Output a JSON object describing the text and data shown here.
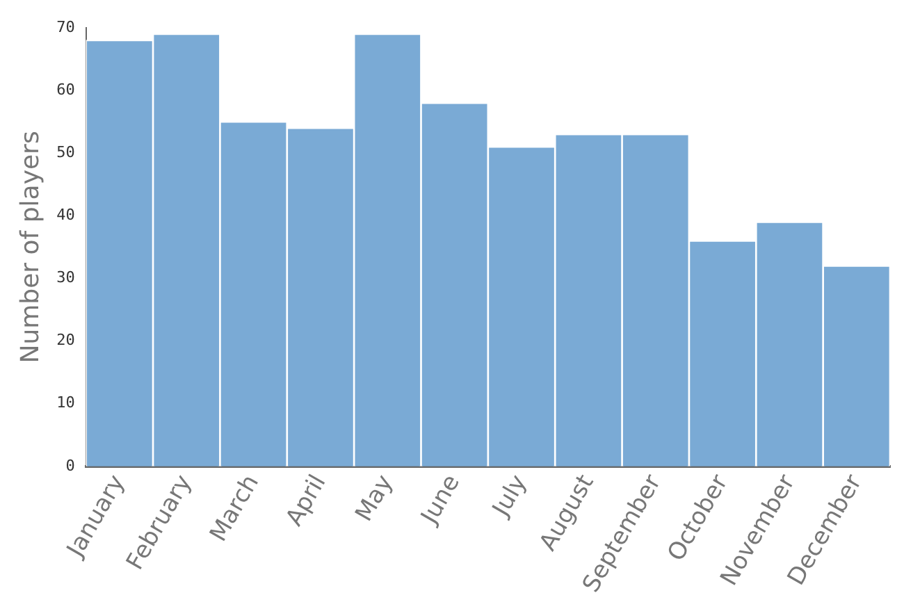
{
  "chart_data": {
    "type": "bar",
    "ylabel": "Number of players",
    "categories": [
      "January",
      "February",
      "March",
      "April",
      "May",
      "June",
      "July",
      "August",
      "September",
      "October",
      "November",
      "December"
    ],
    "values": [
      68,
      69,
      55,
      54,
      69,
      58,
      51,
      53,
      53,
      36,
      39,
      32
    ],
    "color": "#7aaad5",
    "ylim": [
      0,
      70
    ],
    "yticks": [
      0,
      10,
      20,
      30,
      40,
      50,
      60,
      70
    ],
    "grid": false,
    "legend": false
  }
}
